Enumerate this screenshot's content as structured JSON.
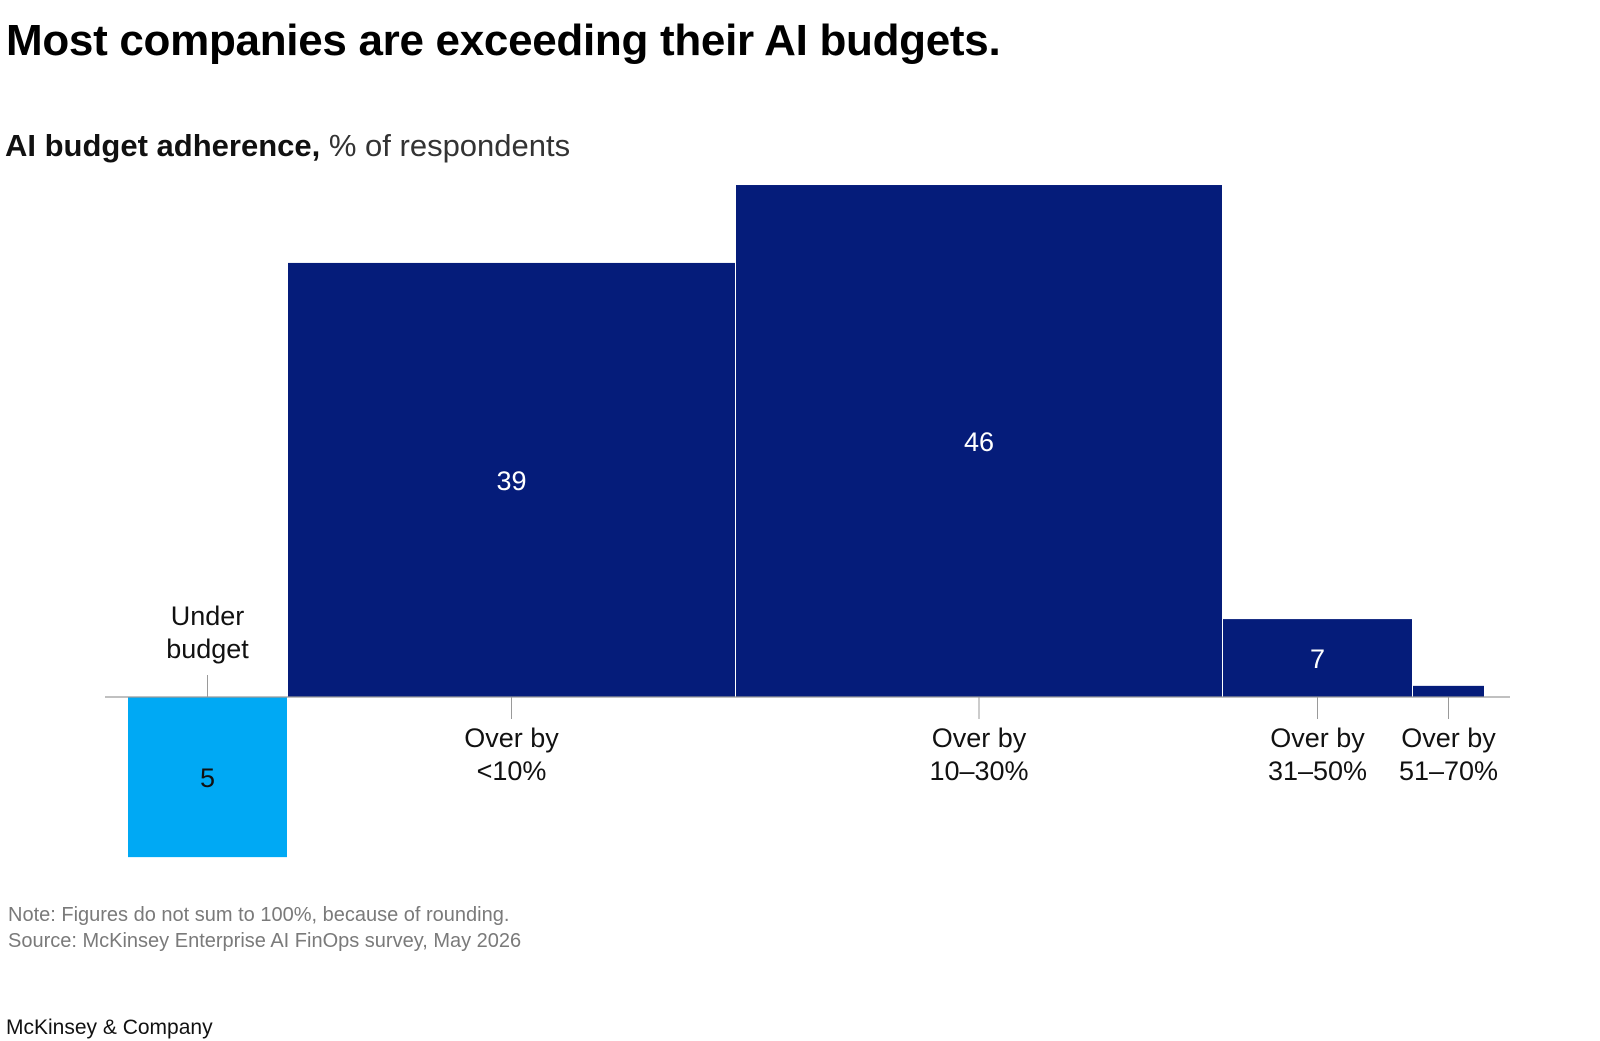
{
  "title": "Most companies are exceeding their AI budgets.",
  "subtitle_bold": "AI budget adherence,",
  "subtitle_unit": "% of respondents",
  "note": "Note: Figures do not sum to 100%, because of rounding.",
  "source": "Source: McKinsey Enterprise AI FinOps survey, May 2026",
  "brand": "McKinsey & Company",
  "colors": {
    "under": "#00A9F4",
    "over": "#051C7A",
    "axis": "#9a9a9a",
    "label_dark": "#111111",
    "label_light": "#ffffff"
  },
  "chart_data": {
    "type": "bar",
    "variant": "variable-width marimekko (width and height proportional to share)",
    "categories": [
      [
        "Under",
        "budget"
      ],
      [
        "Over by",
        "<10%"
      ],
      [
        "Over by",
        "10–30%"
      ],
      [
        "Over by",
        "31–50%"
      ],
      [
        "Over by",
        "51–70%"
      ]
    ],
    "values": [
      5,
      39,
      46,
      7,
      1
    ],
    "direction": [
      "down",
      "up",
      "up",
      "up",
      "up"
    ],
    "grid": false,
    "legend": "none"
  }
}
